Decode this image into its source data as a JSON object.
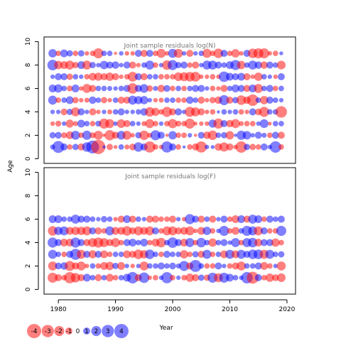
{
  "chart_data": [
    {
      "type": "scatter",
      "subtype": "bubble",
      "title": "Joint sample residuals log(N)",
      "xlabel": "",
      "ylabel": "Age",
      "xlim": [
        1977.5,
        2021.5
      ],
      "ylim": [
        -0.4,
        10.4
      ],
      "xticks": [
        1980,
        1990,
        2000,
        2010,
        2020
      ],
      "yticks": [
        0,
        2,
        4,
        6,
        8,
        10
      ],
      "years": [
        1979,
        1980,
        1981,
        1982,
        1983,
        1984,
        1985,
        1986,
        1987,
        1988,
        1989,
        1990,
        1991,
        1992,
        1993,
        1994,
        1995,
        1996,
        1997,
        1998,
        1999,
        2000,
        2001,
        2002,
        2003,
        2004,
        2005,
        2006,
        2007,
        2008,
        2009,
        2010,
        2011,
        2012,
        2013,
        2014,
        2015,
        2016,
        2017,
        2018,
        2019
      ],
      "ages": [
        1,
        2,
        3,
        4,
        5,
        6,
        7,
        8,
        9
      ],
      "residuals": [
        [
          0.5,
          2.8,
          1.0,
          -0.6,
          0.8,
          -1.0,
          1.8,
          3.3,
          -4.0,
          0.2,
          -0.8,
          -0.3,
          0.6,
          -0.5,
          -0.9,
          1.8,
          1.0,
          -2.5,
          -0.6,
          -0.4,
          2.5,
          1.0,
          -0.6,
          0.2,
          -0.6,
          -1.0,
          -2.5,
          0.4,
          0.3,
          -1.1,
          -1.7,
          -1.0,
          -0.4,
          -2.6,
          0.8,
          -0.8,
          -0.6,
          1.0,
          0.4,
          2.6,
          -0.6
        ],
        [
          0.8,
          0.9,
          -0.7,
          -1.2,
          1.6,
          -0.6,
          1.7,
          -0.7,
          -1.6,
          -0.2,
          -2.1,
          -1.0,
          1.5,
          -1.6,
          -0.4,
          0.8,
          -1.8,
          -0.5,
          2.0,
          1.0,
          -0.2,
          1.4,
          -0.6,
          -0.6,
          0.4,
          -0.2,
          0.9,
          -1.1,
          -1.8,
          0.6,
          0.8,
          -1.4,
          0.2,
          1.7,
          1.4,
          0.4,
          1.0,
          0.5,
          -0.6,
          1.0,
          -1.0
        ],
        [
          -0.4,
          -0.7,
          0.4,
          -1.3,
          -0.5,
          1.2,
          0.6,
          -0.6,
          0.7,
          -2.0,
          -1.6,
          0.4,
          -1.5,
          -1.0,
          0.6,
          0.4,
          -0.5,
          -1.6,
          -0.6,
          0.4,
          -0.6,
          -1.7,
          -0.7,
          -0.6,
          -2.0,
          -0.3,
          -0.4,
          -0.4,
          1.3,
          -2.0,
          1.0,
          -1.1,
          -1.6,
          -0.5,
          -0.6,
          -0.6,
          0.4,
          1.5,
          -0.3,
          0.6,
          0.6
        ],
        [
          0.4,
          0.4,
          -0.9,
          0.8,
          -1.6,
          1.0,
          0.4,
          -1.0,
          -0.4,
          0.4,
          -0.5,
          0.6,
          1.0,
          0.4,
          0.4,
          0.6,
          1.1,
          -1.8,
          -1.3,
          -0.6,
          -2.0,
          -1.0,
          1.0,
          0.4,
          -2.0,
          -1.6,
          -1.0,
          -0.4,
          -0.6,
          0.2,
          0.6,
          0.4,
          0.6,
          -0.6,
          -0.4,
          1.0,
          -0.9,
          -2.0,
          0.6,
          0.6,
          -2.6
        ],
        [
          1.6,
          -0.6,
          0.6,
          1.2,
          -0.8,
          -0.4,
          -0.5,
          1.1,
          0.6,
          -0.8,
          -0.4,
          0.6,
          -1.0,
          -1.0,
          1.6,
          1.3,
          1.4,
          0.4,
          -0.4,
          -0.5,
          0.6,
          0.6,
          -0.6,
          -0.6,
          1.1,
          0.6,
          -1.0,
          -0.4,
          -0.8,
          -1.1,
          2.0,
          -1.0,
          0.8,
          -1.8,
          -1.1,
          -2.6,
          0.6,
          -1.4,
          1.0,
          0.6,
          0.4
        ],
        [
          1.2,
          1.4,
          0.6,
          -0.7,
          1.2,
          -0.4,
          -1.6,
          -1.0,
          0.6,
          0.6,
          0.5,
          0.4,
          0.6,
          1.0,
          -2.2,
          1.0,
          1.5,
          -0.8,
          0.5,
          -1.1,
          0.9,
          -0.6,
          0.6,
          -0.6,
          0.6,
          1.0,
          1.0,
          0.4,
          -0.6,
          -0.4,
          -1.0,
          0.6,
          1.2,
          1.0,
          -1.0,
          1.2,
          -1.6,
          0.6,
          1.0,
          -0.6,
          0.6
        ],
        [
          0.4,
          1.0,
          1.0,
          -0.8,
          0.6,
          0.4,
          -0.6,
          -1.2,
          -1.3,
          -1.0,
          -1.4,
          -1.0,
          -0.4,
          -0.6,
          -1.9,
          1.0,
          -1.0,
          0.6,
          0.6,
          -0.6,
          -0.6,
          -0.6,
          -1.5,
          -1.6,
          -1.8,
          -1.9,
          -0.4,
          -0.4,
          -0.6,
          -0.4,
          2.2,
          1.2,
          1.0,
          1.2,
          -1.0,
          -0.4,
          -1.4,
          0.6,
          0.4,
          -0.4,
          1.0
        ],
        [
          2.2,
          -1.4,
          -1.2,
          -1.6,
          -0.8,
          1.2,
          -1.6,
          0.8,
          0.4,
          1.4,
          1.0,
          1.1,
          0.4,
          1.0,
          -1.0,
          -0.4,
          0.6,
          1.6,
          -0.6,
          0.4,
          -1.8,
          2.0,
          0.8,
          1.0,
          -0.6,
          -1.0,
          0.4,
          1.6,
          1.6,
          1.0,
          0.6,
          1.2,
          2.0,
          -1.4,
          0.6,
          1.6,
          1.1,
          -1.1,
          1.0,
          0.6,
          -1.5
        ],
        [
          1.4,
          -0.6,
          1.2,
          0.8,
          -0.6,
          0.8,
          -0.4,
          -0.6,
          -2.0,
          0.6,
          0.6,
          -0.2,
          0.4,
          -0.4,
          -0.4,
          1.0,
          -1.0,
          1.0,
          -0.6,
          -1.6,
          -0.4,
          1.6,
          -1.6,
          0.4,
          -1.0,
          0.4,
          0.6,
          -1.6,
          -0.6,
          -1.8,
          1.0,
          -0.6,
          -1.4,
          -0.4,
          1.0,
          -1.8,
          -2.0,
          -2.0,
          -0.4,
          -0.6,
          0.3
        ]
      ]
    },
    {
      "type": "scatter",
      "subtype": "bubble",
      "title": "Joint sample residuals log(F)",
      "xlabel": "Year",
      "ylabel": "",
      "xlim": [
        1977.5,
        2021.5
      ],
      "ylim": [
        -0.4,
        10.4
      ],
      "xticks": [
        1980,
        1990,
        2000,
        2010,
        2020
      ],
      "yticks": [
        0,
        2,
        4,
        6,
        8,
        10
      ],
      "years": [
        1979,
        1980,
        1981,
        1982,
        1983,
        1984,
        1985,
        1986,
        1987,
        1988,
        1989,
        1990,
        1991,
        1992,
        1993,
        1994,
        1995,
        1996,
        1997,
        1998,
        1999,
        2000,
        2001,
        2002,
        2003,
        2004,
        2005,
        2006,
        2007,
        2008,
        2009,
        2010,
        2011,
        2012,
        2013,
        2014,
        2015,
        2016,
        2017,
        2018,
        2019
      ],
      "ages": [
        1,
        2,
        3,
        4,
        5,
        6
      ],
      "residuals": [
        [
          -2.0,
          -1.0,
          -0.6,
          -2.5,
          -1.8,
          -1.0,
          1.2,
          0.6,
          -1.0,
          0.6,
          -1.2,
          -0.6,
          0.6,
          1.2,
          2.6,
          -1.0,
          2.2,
          -0.4,
          -0.6,
          0.4,
          2.5,
          -0.6,
          0.4,
          -0.6,
          -1.4,
          -1.0,
          0.8,
          -0.8,
          2.0,
          -1.6,
          2.0,
          1.2,
          0.6,
          0.4,
          2.6,
          -2.8,
          1.0,
          -0.6,
          -1.4,
          -0.9,
          -1.5
        ],
        [
          -1.6,
          0.9,
          1.1,
          -2.0,
          -1.0,
          -1.6,
          -0.4,
          0.6,
          -0.6,
          -1.2,
          -1.4,
          0.8,
          -1.2,
          0.4,
          -0.4,
          0.4,
          -1.6,
          0.6,
          0.6,
          1.0,
          0.6,
          0.9,
          0.5,
          2.0,
          -1.0,
          2.8,
          0.6,
          -0.6,
          -0.6,
          1.0,
          0.4,
          -0.6,
          -1.0,
          -1.6,
          0.6,
          0.6,
          1.0,
          -1.2,
          -0.6,
          0.4,
          -1.6
        ],
        [
          1.6,
          0.6,
          -0.6,
          1.0,
          2.4,
          -1.6,
          1.0,
          -1.3,
          1.0,
          -1.2,
          -0.6,
          0.6,
          0.6,
          -1.2,
          -1.0,
          -1.8,
          -1.4,
          1.8,
          0.6,
          -0.6,
          1.0,
          0.6,
          0.6,
          -1.4,
          -0.6,
          0.8,
          -1.0,
          1.6,
          -0.6,
          0.6,
          -1.2,
          1.6,
          -1.2,
          1.6,
          1.0,
          1.8,
          1.8,
          -1.6,
          1.6,
          0.6,
          0.8
        ],
        [
          2.0,
          1.0,
          -1.2,
          -1.2,
          2.0,
          1.0,
          -1.0,
          -1.6,
          -2.0,
          -1.6,
          -1.0,
          -1.6,
          -0.6,
          1.0,
          1.2,
          0.6,
          1.2,
          -0.6,
          -1.2,
          -1.8,
          0.6,
          2.2,
          1.0,
          -1.2,
          1.6,
          -0.6,
          1.8,
          0.6,
          -1.4,
          0.6,
          1.0,
          0.4,
          1.6,
          -0.6,
          1.6,
          1.8,
          -1.2,
          1.0,
          1.0,
          -1.4,
          -0.6
        ],
        [
          -1.8,
          1.4,
          1.6,
          -1.2,
          -1.4,
          -1.4,
          -1.6,
          1.0,
          -1.0,
          -0.6,
          1.6,
          -1.2,
          -1.2,
          -1.8,
          -1.0,
          -1.6,
          -1.2,
          -1.6,
          1.0,
          -0.6,
          -1.6,
          -1.6,
          -1.0,
          -1.2,
          -1.6,
          -0.4,
          -1.2,
          1.4,
          -0.6,
          0.4,
          2.0,
          -0.6,
          -1.2,
          0.6,
          2.0,
          1.6,
          -1.6,
          1.0,
          -0.6,
          -0.6,
          2.0
        ],
        [
          1.2,
          1.2,
          0.6,
          0.6,
          1.6,
          1.0,
          1.0,
          0.6,
          0.4,
          0.8,
          0.6,
          -0.4,
          -1.0,
          1.2,
          -1.0,
          0.6,
          0.4,
          -1.0,
          -1.0,
          -0.6,
          -0.6,
          -1.0,
          0.4,
          -0.4,
          2.0,
          1.0,
          -1.0,
          0.6,
          -1.0,
          0.4,
          1.0,
          -0.6,
          -1.2,
          1.2,
          -1.0,
          1.6,
          1.2,
          -0.6,
          1.0,
          0.6,
          1.0
        ]
      ]
    }
  ],
  "legend": {
    "values": [
      -4,
      -3,
      -2,
      -1,
      0,
      1,
      2,
      3,
      4
    ],
    "labels": [
      "-4",
      "-3",
      "-2",
      "-1",
      "0",
      "1",
      "2",
      "3",
      "4"
    ]
  },
  "colors": {
    "positive": "#0000ff",
    "negative": "#ff0000",
    "fill_alpha": 0.5,
    "title_gray": "#777777"
  }
}
